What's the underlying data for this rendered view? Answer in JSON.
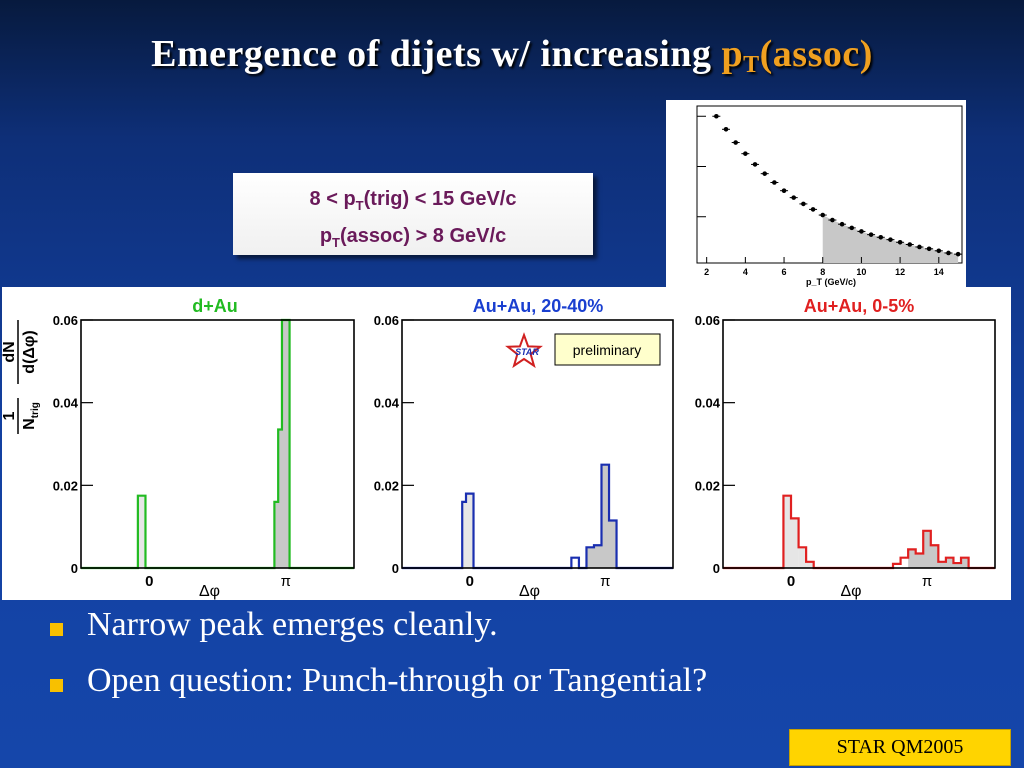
{
  "slide": {
    "title_text": "Emergence of dijets w/ increasing",
    "title_pt": "p",
    "title_sub": "T",
    "title_assoc": "(assoc)",
    "title_color_accent": "#f0a020"
  },
  "cuts": {
    "trig_prefix": "8 < p",
    "trig_sub": "T",
    "trig_suffix": "(trig) < 15 GeV/c",
    "assoc_prefix": "p",
    "assoc_sub": "T",
    "assoc_suffix": "(assoc) > 8 GeV/c"
  },
  "bullets": [
    "Narrow peak emerges cleanly.",
    "Open question:  Punch-through or Tangential?"
  ],
  "footer": {
    "label": "STAR  QM2005"
  },
  "chart_data": [
    {
      "type": "scatter",
      "xlabel": "p_T (GeV/c)",
      "x_ticks": [
        "2",
        "4",
        "6",
        "8",
        "10",
        "12",
        "14"
      ],
      "xlim": [
        1.5,
        15.2
      ],
      "log_y": true,
      "x": [
        2.5,
        3.0,
        3.5,
        4.0,
        4.5,
        5.0,
        5.5,
        6.0,
        6.5,
        7.0,
        7.5,
        8.0,
        8.5,
        9.0,
        9.5,
        10.0,
        10.5,
        11.0,
        11.5,
        12.0,
        12.5,
        13.0,
        13.5,
        14.0,
        14.5,
        15.0
      ],
      "y": [
        1.0,
        0.55,
        0.3,
        0.18,
        0.11,
        0.072,
        0.048,
        0.033,
        0.024,
        0.018,
        0.014,
        0.0108,
        0.0086,
        0.0071,
        0.006,
        0.0051,
        0.0044,
        0.0039,
        0.0035,
        0.0031,
        0.0028,
        0.0025,
        0.0023,
        0.0021,
        0.0019,
        0.0018
      ],
      "shaded_from_x": 8
    },
    {
      "type": "bar",
      "title": "d+Au",
      "title_color": "#22bb22",
      "color": "#22bb22",
      "ylabel_num": "1",
      "ylabel_den": "N",
      "ylabel_den_sub": "trig",
      "ylabel_frac_num": "dN",
      "ylabel_frac_den": "d(Δφ)",
      "xlabel": "Δφ",
      "x_tick_labels": [
        "0",
        "π"
      ],
      "y_ticks": [
        0,
        0.02,
        0.04,
        0.06
      ],
      "y_tick_labels": [
        "0",
        "0.02",
        "0.04",
        "0.06"
      ],
      "ylim": [
        0,
        0.06
      ],
      "xlim": [
        -1.571,
        4.712
      ],
      "bins": [
        {
          "x0": -0.262,
          "x1": -0.087,
          "y": 0.0175
        },
        {
          "x0": 2.88,
          "x1": 2.967,
          "y": 0.016
        },
        {
          "x0": 2.967,
          "x1": 3.054,
          "y": 0.0335
        },
        {
          "x0": 3.054,
          "x1": 3.229,
          "y": 0.06
        }
      ],
      "shaded_from_x": 2.88
    },
    {
      "type": "bar",
      "title": "Au+Au, 20-40%",
      "title_color": "#1a3fd0",
      "color": "#1a2fb0",
      "badge_logo": "STAR",
      "badge_label": "preliminary",
      "xlabel": "Δφ",
      "x_tick_labels": [
        "0",
        "π"
      ],
      "y_ticks": [
        0,
        0.02,
        0.04,
        0.06
      ],
      "y_tick_labels": [
        "0",
        "0.02",
        "0.04",
        "0.06"
      ],
      "ylim": [
        0,
        0.06
      ],
      "xlim": [
        -1.571,
        4.712
      ],
      "bins": [
        {
          "x0": -0.175,
          "x1": -0.087,
          "y": 0.016
        },
        {
          "x0": -0.087,
          "x1": 0.087,
          "y": 0.018
        },
        {
          "x0": 2.356,
          "x1": 2.531,
          "y": 0.0025
        },
        {
          "x0": 2.706,
          "x1": 2.88,
          "y": 0.005
        },
        {
          "x0": 2.88,
          "x1": 3.054,
          "y": 0.0055
        },
        {
          "x0": 3.054,
          "x1": 3.229,
          "y": 0.025
        },
        {
          "x0": 3.229,
          "x1": 3.403,
          "y": 0.0115
        }
      ],
      "shaded_from_x": 2.706
    },
    {
      "type": "bar",
      "title": "Au+Au, 0-5%",
      "title_color": "#e02020",
      "color": "#e02020",
      "xlabel": "Δφ",
      "x_tick_labels": [
        "0",
        "π"
      ],
      "y_ticks": [
        0,
        0.02,
        0.04,
        0.06
      ],
      "y_tick_labels": [
        "0",
        "0.02",
        "0.04",
        "0.06"
      ],
      "ylim": [
        0,
        0.06
      ],
      "xlim": [
        -1.571,
        4.712
      ],
      "bins": [
        {
          "x0": -0.175,
          "x1": 0.0,
          "y": 0.0175
        },
        {
          "x0": 0.0,
          "x1": 0.175,
          "y": 0.012
        },
        {
          "x0": 0.175,
          "x1": 0.349,
          "y": 0.005
        },
        {
          "x0": 0.349,
          "x1": 0.524,
          "y": 0.0015
        },
        {
          "x0": 2.356,
          "x1": 2.531,
          "y": 0.001
        },
        {
          "x0": 2.531,
          "x1": 2.706,
          "y": 0.0025
        },
        {
          "x0": 2.706,
          "x1": 2.88,
          "y": 0.0045
        },
        {
          "x0": 2.88,
          "x1": 3.054,
          "y": 0.0035
        },
        {
          "x0": 3.054,
          "x1": 3.229,
          "y": 0.009
        },
        {
          "x0": 3.229,
          "x1": 3.403,
          "y": 0.0055
        },
        {
          "x0": 3.403,
          "x1": 3.578,
          "y": 0.0015
        },
        {
          "x0": 3.578,
          "x1": 3.752,
          "y": 0.0025
        },
        {
          "x0": 3.752,
          "x1": 3.927,
          "y": 0.0012
        },
        {
          "x0": 3.927,
          "x1": 4.102,
          "y": 0.0025
        }
      ],
      "shaded_from_x": 2.706
    }
  ]
}
